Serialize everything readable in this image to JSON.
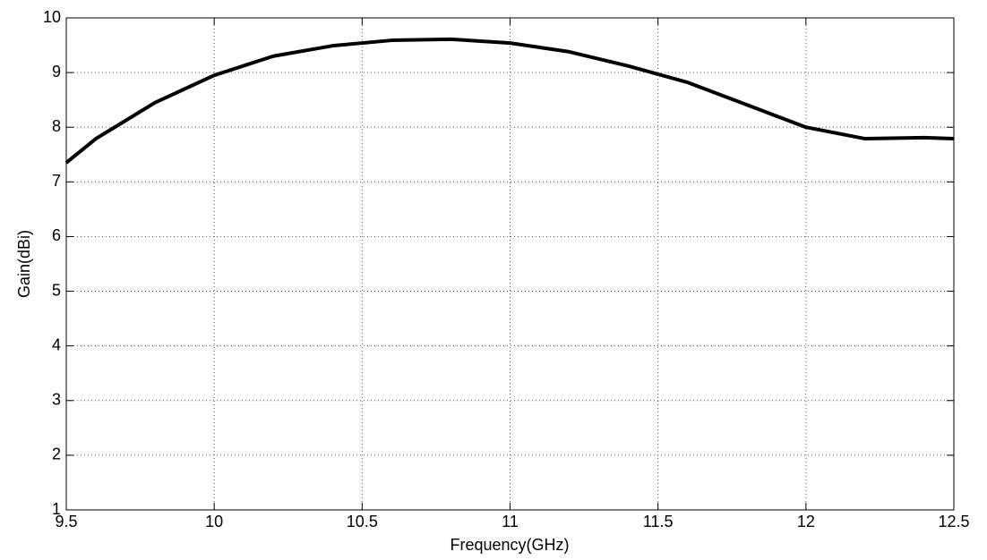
{
  "chart_data": {
    "type": "line",
    "x_label": "Frequency(GHz)",
    "y_label": "Gain(dBi)",
    "x": [
      9.5,
      9.6,
      9.8,
      10.0,
      10.2,
      10.4,
      10.6,
      10.8,
      11.0,
      11.2,
      11.4,
      11.6,
      11.8,
      12.0,
      12.2,
      12.4,
      12.5
    ],
    "series": [
      {
        "color": "#000000",
        "values": [
          7.35,
          7.79,
          8.45,
          8.95,
          9.3,
          9.49,
          9.59,
          9.61,
          9.54,
          9.38,
          9.12,
          8.82,
          8.41,
          8.0,
          7.79,
          7.81,
          7.79
        ]
      }
    ],
    "xlim": [
      9.5,
      12.5
    ],
    "xticks": [
      9.5,
      10,
      10.5,
      11,
      11.5,
      12,
      12.5
    ],
    "ylim": [
      1,
      10
    ],
    "yticks": [
      1,
      2,
      3,
      4,
      5,
      6,
      7,
      8,
      9,
      10
    ],
    "grid": true
  }
}
